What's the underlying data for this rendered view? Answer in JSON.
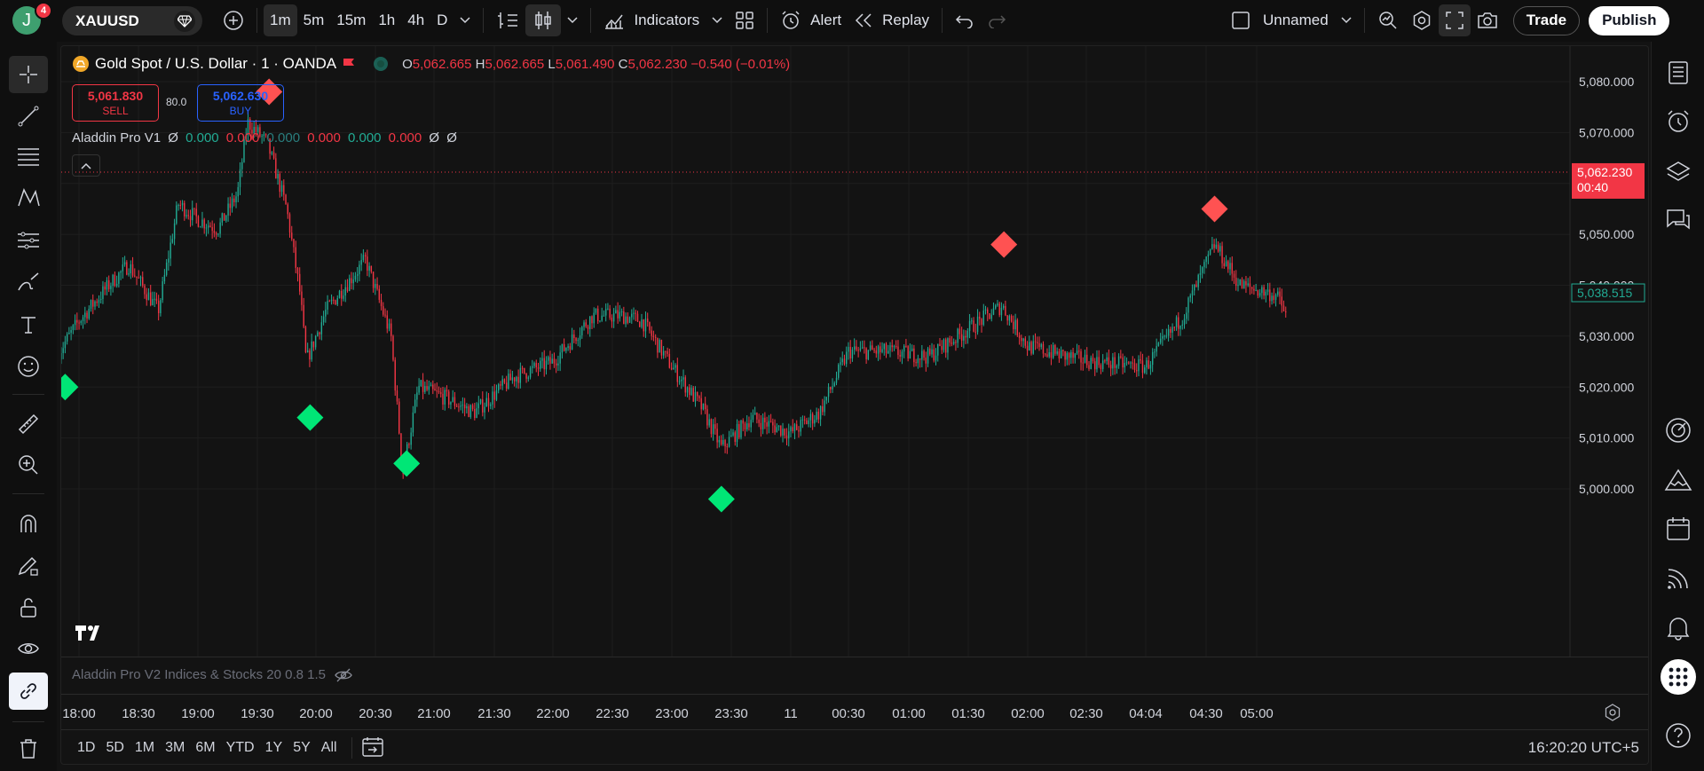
{
  "header": {
    "avatar_letter": "J",
    "notification_count": "4",
    "symbol": "XAUUSD",
    "intervals": [
      "1m",
      "5m",
      "15m",
      "1h",
      "4h",
      "D"
    ],
    "indicators_label": "Indicators",
    "alert_label": "Alert",
    "replay_label": "Replay",
    "layout_name": "Unnamed",
    "trade_label": "Trade",
    "publish_label": "Publish"
  },
  "legend": {
    "title": "Gold Spot / U.S. Dollar · 1 · OANDA",
    "o_key": "O",
    "o_val": "5,062.665",
    "h_key": "H",
    "h_val": "5,062.665",
    "l_key": "L",
    "l_val": "5,061.490",
    "c_key": "C",
    "c_val": "5,062.230",
    "change": "−0.540 (−0.01%)",
    "sell_price": "5,061.830",
    "sell_label": "SELL",
    "buy_price": "5,062.630",
    "buy_label": "BUY",
    "spread": "80.0",
    "indicator_name": "Aladdin Pro V1",
    "indicator_values": [
      {
        "text": "Ø",
        "color": "#d1d4dc"
      },
      {
        "text": "0.000",
        "color": "#22ab94"
      },
      {
        "text": "0.000",
        "color": "#f23645"
      },
      {
        "text": "0.000",
        "color": "#2a7e7e"
      },
      {
        "text": "0.000",
        "color": "#f23645"
      },
      {
        "text": "0.000",
        "color": "#22ab94"
      },
      {
        "text": "0.000",
        "color": "#f23645"
      },
      {
        "text": "Ø",
        "color": "#d1d4dc"
      },
      {
        "text": "Ø",
        "color": "#d1d4dc"
      }
    ],
    "pane_label": "Aladdin Pro V2 Indices & Stocks 20 0.8 1.5"
  },
  "price_axis": {
    "ticks": [
      "5,080.000",
      "5,070.000",
      "5,050.000",
      "5,040.000",
      "5,030.000",
      "5,020.000",
      "5,010.000",
      "5,000.000"
    ],
    "current_price": "5,062.230",
    "countdown": "00:40",
    "crosshair_price": "5,038.515"
  },
  "time_axis": {
    "ticks": [
      "18:00",
      "18:30",
      "19:00",
      "19:30",
      "20:00",
      "20:30",
      "21:00",
      "21:30",
      "22:00",
      "22:30",
      "23:00",
      "23:30",
      "11",
      "00:30",
      "01:00",
      "01:30",
      "02:00",
      "02:30",
      "04:04",
      "04:30",
      "05:00"
    ]
  },
  "bottom": {
    "ranges": [
      "1D",
      "5D",
      "1M",
      "3M",
      "6M",
      "YTD",
      "1Y",
      "5Y",
      "All"
    ],
    "clock": "16:20:20 UTC+5"
  },
  "colors": {
    "up": "#22ab94",
    "down": "#f23645",
    "buy_signal": "#00e676",
    "sell_signal": "#ff5252",
    "background": "#131313"
  },
  "chart_data": {
    "type": "candlestick",
    "symbol": "XAUUSD",
    "interval": "1m",
    "ylim": [
      4995,
      5085
    ],
    "path_points": [
      {
        "t": "17:50",
        "y": 5027
      },
      {
        "t": "18:00",
        "y": 5033
      },
      {
        "t": "18:15",
        "y": 5040
      },
      {
        "t": "18:25",
        "y": 5044
      },
      {
        "t": "18:40",
        "y": 5035
      },
      {
        "t": "18:50",
        "y": 5056
      },
      {
        "t": "19:00",
        "y": 5053
      },
      {
        "t": "19:10",
        "y": 5051
      },
      {
        "t": "19:20",
        "y": 5058
      },
      {
        "t": "19:25",
        "y": 5072
      },
      {
        "t": "19:35",
        "y": 5068
      },
      {
        "t": "19:45",
        "y": 5055
      },
      {
        "t": "19:52",
        "y": 5038
      },
      {
        "t": "19:55",
        "y": 5025
      },
      {
        "t": "20:05",
        "y": 5035
      },
      {
        "t": "20:15",
        "y": 5040
      },
      {
        "t": "20:25",
        "y": 5045
      },
      {
        "t": "20:38",
        "y": 5030
      },
      {
        "t": "20:44",
        "y": 5003
      },
      {
        "t": "20:52",
        "y": 5020
      },
      {
        "t": "21:05",
        "y": 5018
      },
      {
        "t": "21:20",
        "y": 5015
      },
      {
        "t": "21:40",
        "y": 5022
      },
      {
        "t": "22:00",
        "y": 5025
      },
      {
        "t": "22:20",
        "y": 5034
      },
      {
        "t": "22:35",
        "y": 5034
      },
      {
        "t": "22:45",
        "y": 5033
      },
      {
        "t": "23:00",
        "y": 5024
      },
      {
        "t": "23:15",
        "y": 5016
      },
      {
        "t": "23:25",
        "y": 5008
      },
      {
        "t": "23:40",
        "y": 5014
      },
      {
        "t": "00:00",
        "y": 5011
      },
      {
        "t": "00:15",
        "y": 5015
      },
      {
        "t": "00:30",
        "y": 5027
      },
      {
        "t": "00:50",
        "y": 5027
      },
      {
        "t": "01:10",
        "y": 5026
      },
      {
        "t": "01:25",
        "y": 5030
      },
      {
        "t": "01:47",
        "y": 5036
      },
      {
        "t": "02:00",
        "y": 5028
      },
      {
        "t": "02:20",
        "y": 5026
      },
      {
        "t": "02:40",
        "y": 5025
      },
      {
        "t": "04:04",
        "y": 5024
      },
      {
        "t": "04:20",
        "y": 5034
      },
      {
        "t": "04:35",
        "y": 5048
      },
      {
        "t": "04:50",
        "y": 5040
      },
      {
        "t": "05:10",
        "y": 5038
      },
      {
        "t": "05:15",
        "y": 5034
      }
    ],
    "signals": [
      {
        "type": "buy",
        "t": "17:53",
        "y": 5020
      },
      {
        "type": "sell",
        "t": "19:36",
        "y": 5078
      },
      {
        "type": "buy",
        "t": "19:57",
        "y": 5014
      },
      {
        "type": "buy",
        "t": "20:46",
        "y": 5005
      },
      {
        "type": "buy",
        "t": "23:25",
        "y": 4998
      },
      {
        "type": "sell",
        "t": "01:48",
        "y": 5048
      },
      {
        "type": "sell",
        "t": "04:35",
        "y": 5055
      }
    ],
    "last_price": 5062.23
  }
}
